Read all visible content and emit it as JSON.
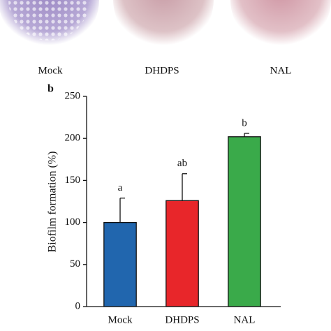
{
  "image_labels": [
    "Mock",
    "DHDPS",
    "NAL"
  ],
  "chart_data": {
    "type": "bar",
    "panel_label": "b",
    "ylabel": "Biofilm formation (%)",
    "categories": [
      "Mock",
      "DHDPS",
      "NAL"
    ],
    "values": [
      100,
      126,
      202
    ],
    "errors": [
      29,
      32,
      4
    ],
    "annotations": [
      "a",
      "ab",
      "b"
    ],
    "colors": [
      "#2166ae",
      "#e8262a",
      "#3aaa4a"
    ],
    "ylim": [
      0,
      250
    ],
    "yticks": [
      0,
      50,
      100,
      150,
      200,
      250
    ],
    "grid": false
  }
}
